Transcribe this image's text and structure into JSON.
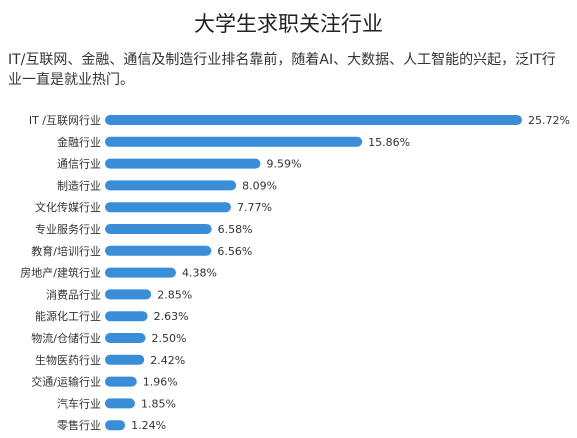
{
  "chart_data": {
    "type": "bar",
    "orientation": "horizontal",
    "title": "大学生求职关注行业",
    "subtitle": "IT/互联网、金融、通信及制造行业排名靠前，随着AI、大数据、人工智能的兴起，泛IT行业一直是就业热门。",
    "categories": [
      "IT /互联网行业",
      "金融行业",
      "通信行业",
      "制造行业",
      "文化传媒行业",
      "专业服务行业",
      "教育/培训行业",
      "房地产/建筑行业",
      "消费品行业",
      "能源化工行业",
      "物流/仓储行业",
      "生物医药行业",
      "交通/运输行业",
      "汽车行业",
      "零售行业"
    ],
    "values": [
      25.72,
      15.86,
      9.59,
      8.09,
      7.77,
      6.58,
      6.56,
      4.38,
      2.85,
      2.63,
      2.5,
      2.42,
      1.96,
      1.85,
      1.24
    ],
    "value_labels": [
      "25.72%",
      "15.86%",
      "9.59%",
      "8.09%",
      "7.77%",
      "6.58%",
      "6.56%",
      "4.38%",
      "2.85%",
      "2.63%",
      "2.50%",
      "2.42%",
      "1.96%",
      "1.85%",
      "1.24%"
    ],
    "xlim": [
      0,
      25.72
    ],
    "grid": false,
    "bar_color": "#3a8ed8"
  }
}
